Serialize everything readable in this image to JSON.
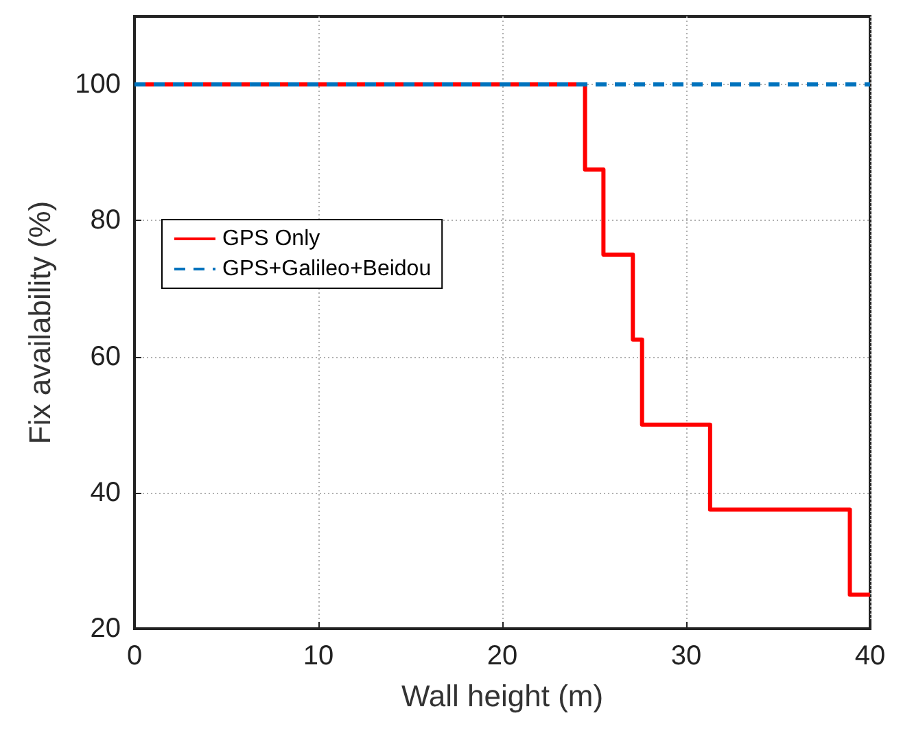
{
  "chart_data": {
    "type": "line",
    "xlabel": "Wall height (m)",
    "ylabel": "Fix availability (%)",
    "xlim": [
      0,
      40
    ],
    "xticks": [
      0,
      10,
      20,
      30,
      40
    ],
    "ylim": [
      20,
      110
    ],
    "yticks": [
      20,
      40,
      60,
      80,
      100
    ],
    "grid": true,
    "legend": "center left",
    "marker": "none",
    "series": [
      {
        "name": "GPS Only",
        "type": "step",
        "color": "#ff0000",
        "line_style": "solid",
        "x": [
          0,
          24.5,
          25.5,
          27.1,
          27.6,
          31.3,
          38.9,
          40
        ],
        "values": [
          100,
          87.5,
          75,
          62.5,
          50,
          37.5,
          25,
          25
        ]
      },
      {
        "name": "GPS+Galileo+Beidou",
        "color": "#0072bd",
        "line_style": "dashed",
        "x": [
          0,
          40
        ],
        "values": [
          100,
          100
        ]
      }
    ]
  }
}
